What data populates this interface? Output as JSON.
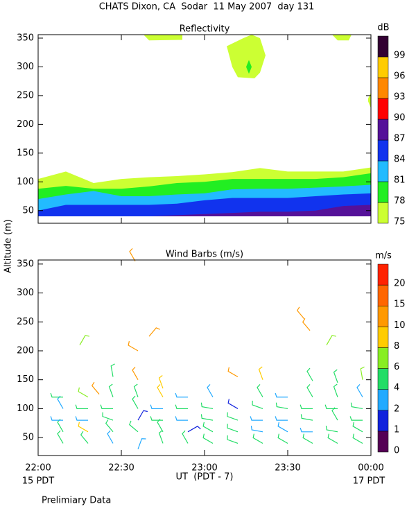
{
  "title": "CHATS Dixon, CA  Sodar  11 May 2007  day 131",
  "ylabel": "Altitude (m)",
  "xlabel": "UT  (PDT - 7)",
  "x_sublabels": [
    "15 PDT",
    "17 PDT"
  ],
  "footer": "Prelimiary Data",
  "chart_data": [
    {
      "type": "contour",
      "title": "Reflectivity",
      "ylim": [
        28,
        356
      ],
      "yticks": [
        50,
        100,
        150,
        200,
        250,
        300,
        350
      ],
      "colorbar": {
        "title": "dB",
        "labels": [
          75,
          78,
          81,
          84,
          87,
          90,
          93,
          96,
          99
        ],
        "colors": [
          "#ccff33",
          "#22ee22",
          "#22bbff",
          "#1133ee",
          "#551199",
          "#ff0000",
          "#ff8800",
          "#ffcc00",
          "#330033"
        ]
      },
      "floor": 40,
      "x": [
        0,
        10,
        20,
        30,
        40,
        50,
        60,
        70,
        80,
        90,
        100,
        110,
        120
      ],
      "contours": [
        {
          "values": [
            105,
            118,
            98,
            105,
            108,
            110,
            113,
            117,
            124,
            118,
            118,
            118,
            125
          ]
        },
        {
          "values": [
            88,
            93,
            88,
            88,
            92,
            98,
            100,
            105,
            105,
            105,
            105,
            108,
            115
          ]
        },
        {
          "values": [
            70,
            78,
            84,
            75,
            75,
            78,
            80,
            87,
            88,
            88,
            90,
            92,
            95
          ]
        },
        {
          "values": [
            50,
            60,
            60,
            60,
            60,
            62,
            68,
            72,
            72,
            72,
            75,
            78,
            80
          ]
        },
        {
          "values": [
            40,
            40,
            40,
            40,
            40,
            42,
            44,
            46,
            48,
            48,
            50,
            58,
            60
          ]
        }
      ],
      "patches": [
        {
          "color": "#ccff33",
          "x": [
            38,
            52,
            52,
            40
          ],
          "y": [
            356,
            356,
            347,
            346
          ]
        },
        {
          "color": "#ccff33",
          "x": [
            68,
            74,
            77,
            80,
            82,
            80,
            78,
            72,
            70
          ],
          "y": [
            336,
            350,
            356,
            350,
            320,
            290,
            280,
            282,
            300
          ]
        },
        {
          "color": "#22ee22",
          "x": [
            75,
            76,
            77,
            76
          ],
          "y": [
            300,
            312,
            300,
            288
          ]
        },
        {
          "color": "#ccff33",
          "x": [
            106,
            113,
            112,
            108
          ],
          "y": [
            356,
            356,
            346,
            346
          ]
        },
        {
          "color": "#ccff33",
          "x": [
            119,
            120,
            120,
            119
          ],
          "y": [
            240,
            228,
            255,
            245
          ]
        }
      ]
    },
    {
      "type": "barbs",
      "title": "Wind Barbs (m/s)",
      "xlim": [
        0,
        120
      ],
      "xticks": [
        {
          "value": 0,
          "label": "22:00"
        },
        {
          "value": 30,
          "label": "22:30"
        },
        {
          "value": 60,
          "label": "23:00"
        },
        {
          "value": 90,
          "label": "23:30"
        },
        {
          "value": 120,
          "label": "00:00"
        }
      ],
      "ylim": [
        19,
        357
      ],
      "yticks": [
        50,
        100,
        150,
        200,
        250,
        300,
        350
      ],
      "colorbar": {
        "title": "m/s",
        "labels": [
          0,
          1,
          2,
          4,
          6,
          8,
          10,
          15,
          20
        ],
        "colors": [
          "#550055",
          "#1122dd",
          "#22aaff",
          "#22dd66",
          "#88ee22",
          "#ffcc00",
          "#ff9900",
          "#ff6600",
          "#ff2200"
        ]
      },
      "x": [
        9,
        18,
        27,
        36,
        45,
        54,
        63,
        72,
        81,
        90,
        99,
        108,
        117,
        9,
        18,
        27,
        36,
        45,
        54,
        63,
        72,
        81,
        90,
        99,
        108,
        117,
        9,
        18,
        27,
        36,
        45,
        54,
        63,
        72,
        81,
        90,
        99,
        108,
        117,
        9,
        18,
        27,
        36,
        45,
        54,
        63,
        72,
        81,
        90,
        99,
        108,
        117,
        9,
        18,
        27,
        36,
        45,
        54,
        63,
        81,
        90,
        99,
        108,
        117,
        27,
        36,
        45,
        72,
        81,
        99,
        108,
        117,
        15,
        36,
        40,
        35,
        96,
        98,
        104,
        22
      ],
      "altitude": [
        40,
        40,
        40,
        30,
        40,
        40,
        40,
        40,
        40,
        40,
        40,
        40,
        40,
        60,
        60,
        60,
        60,
        60,
        60,
        60,
        60,
        60,
        60,
        60,
        60,
        60,
        80,
        80,
        80,
        80,
        80,
        80,
        80,
        80,
        80,
        80,
        80,
        80,
        80,
        100,
        100,
        100,
        100,
        100,
        100,
        100,
        100,
        100,
        100,
        100,
        100,
        100,
        120,
        120,
        120,
        120,
        120,
        120,
        120,
        120,
        120,
        120,
        120,
        120,
        155,
        150,
        135,
        155,
        150,
        148,
        145,
        150,
        210,
        200,
        225,
        355,
        255,
        235,
        210,
        125
      ],
      "speed": [
        5,
        5,
        3,
        3,
        5,
        5,
        5,
        5,
        5,
        5,
        5,
        5,
        5,
        5,
        9,
        5,
        5,
        5,
        1,
        5,
        5,
        3,
        3,
        3,
        5,
        5,
        3,
        3,
        5,
        1,
        5,
        3,
        5,
        5,
        3,
        3,
        5,
        5,
        5,
        3,
        5,
        5,
        5,
        3,
        5,
        5,
        1,
        5,
        5,
        5,
        5,
        5,
        5,
        7,
        5,
        5,
        9,
        3,
        3,
        5,
        3,
        5,
        5,
        3,
        4,
        12,
        9,
        12,
        9,
        5,
        5,
        7,
        7,
        12,
        12,
        12,
        12,
        12,
        7,
        12
      ],
      "direction": [
        330,
        320,
        330,
        20,
        340,
        330,
        300,
        290,
        300,
        300,
        300,
        300,
        300,
        330,
        300,
        320,
        310,
        330,
        60,
        300,
        290,
        280,
        300,
        270,
        280,
        300,
        270,
        270,
        290,
        30,
        270,
        270,
        280,
        290,
        270,
        270,
        280,
        330,
        270,
        330,
        270,
        270,
        330,
        270,
        270,
        280,
        300,
        290,
        280,
        270,
        270,
        280,
        270,
        300,
        340,
        340,
        330,
        270,
        330,
        330,
        270,
        330,
        340,
        330,
        350,
        330,
        340,
        300,
        340,
        330,
        340,
        350,
        30,
        300,
        40,
        330,
        320,
        320,
        30,
        320
      ]
    }
  ]
}
